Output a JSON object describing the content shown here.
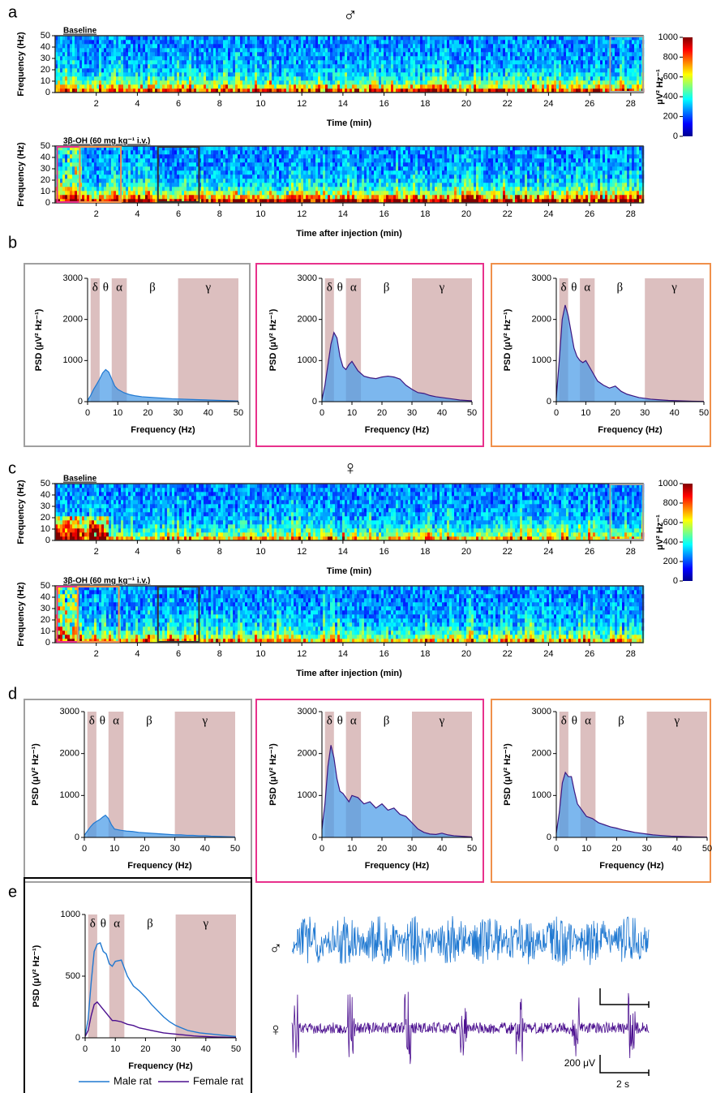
{
  "figure": {
    "panel_labels": [
      "a",
      "b",
      "c",
      "d",
      "e"
    ],
    "sex_symbols": [
      "♂",
      "♀"
    ]
  },
  "chart_data": [
    {
      "type": "spectrogram",
      "title": "Baseline",
      "xlabel": "Time (min)",
      "ylabel": "Frequency (Hz)",
      "xlim": [
        0,
        28.6
      ],
      "xticks": [
        2,
        4,
        6,
        8,
        10,
        12,
        14,
        16,
        18,
        20,
        22,
        24,
        26,
        28
      ],
      "ylim": [
        0,
        50
      ],
      "yticks": [
        0,
        10,
        20,
        30,
        40,
        50
      ],
      "boxes": [
        {
          "from": 27,
          "to": 28.6,
          "color": "#a0a0a0"
        }
      ],
      "colorbar": {
        "label": "μV² Hz⁻¹",
        "lim": [
          0,
          1000
        ],
        "ticks": [
          0,
          200,
          400,
          600,
          800,
          1000
        ]
      }
    },
    {
      "type": "spectrogram",
      "title": "3β-OH (60 mg kg⁻¹ i.v.)",
      "xlabel": "Time after injection (min)",
      "ylabel": "Frequency (Hz)",
      "xlim": [
        0,
        28.6
      ],
      "xticks": [
        2,
        4,
        6,
        8,
        10,
        12,
        14,
        16,
        18,
        20,
        22,
        24,
        26,
        28
      ],
      "ylim": [
        0,
        50
      ],
      "yticks": [
        0,
        10,
        20,
        30,
        40,
        50
      ],
      "boxes": [
        {
          "from": 0.1,
          "to": 1.2,
          "color": "#e8318c"
        },
        {
          "from": 1.2,
          "to": 3.2,
          "color": "#f0904a"
        },
        {
          "from": 5,
          "to": 7,
          "color": "#333333"
        }
      ]
    },
    {
      "type": "area",
      "xlabel": "Frequency (Hz)",
      "ylabel": "PSD (μV² Hz⁻¹)",
      "frame_color": "#a0a0a0",
      "color": "#4a9be8",
      "line_color": "#1f78d1",
      "band_color": "#dcbfbf",
      "bands": [
        {
          "label": "δ",
          "from": 1,
          "to": 4,
          "shaded": true
        },
        {
          "label": "θ",
          "from": 4,
          "to": 8,
          "shaded": false
        },
        {
          "label": "α",
          "from": 8,
          "to": 13,
          "shaded": true
        },
        {
          "label": "β",
          "from": 13,
          "to": 30,
          "shaded": false
        },
        {
          "label": "γ",
          "from": 30,
          "to": 50,
          "shaded": true
        }
      ],
      "xlim": [
        0,
        50
      ],
      "xticks": [
        0,
        10,
        20,
        30,
        40,
        50
      ],
      "ylim": [
        0,
        3000
      ],
      "yticks": [
        0,
        1000,
        2000,
        3000
      ],
      "x": [
        0,
        1,
        2,
        3,
        4,
        5,
        6,
        7,
        8,
        9,
        10,
        12,
        14,
        16,
        18,
        20,
        22,
        24,
        26,
        28,
        30,
        32,
        34,
        36,
        38,
        40,
        42,
        44,
        46,
        48,
        50
      ],
      "values": [
        30,
        150,
        300,
        420,
        550,
        700,
        780,
        720,
        550,
        380,
        300,
        220,
        170,
        140,
        120,
        110,
        100,
        90,
        80,
        70,
        65,
        60,
        55,
        50,
        45,
        40,
        35,
        30,
        25,
        20,
        15
      ]
    },
    {
      "type": "area",
      "xlabel": "Frequency (Hz)",
      "ylabel": "PSD (μV² Hz⁻¹)",
      "frame_color": "#e8318c",
      "color": "#4a9be8",
      "line_color": "#3d1680",
      "band_color": "#dcbfbf",
      "bands": [
        {
          "label": "δ",
          "from": 1,
          "to": 4,
          "shaded": true
        },
        {
          "label": "θ",
          "from": 4,
          "to": 8,
          "shaded": false
        },
        {
          "label": "α",
          "from": 8,
          "to": 13,
          "shaded": true
        },
        {
          "label": "β",
          "from": 13,
          "to": 30,
          "shaded": false
        },
        {
          "label": "γ",
          "from": 30,
          "to": 50,
          "shaded": true
        }
      ],
      "xlim": [
        0,
        50
      ],
      "xticks": [
        0,
        10,
        20,
        30,
        40,
        50
      ],
      "ylim": [
        0,
        3000
      ],
      "yticks": [
        0,
        1000,
        2000,
        3000
      ],
      "x": [
        0,
        1,
        2,
        3,
        4,
        5,
        6,
        7,
        8,
        9,
        10,
        12,
        14,
        16,
        18,
        20,
        22,
        24,
        26,
        28,
        30,
        32,
        34,
        36,
        38,
        40,
        42,
        44,
        46,
        48,
        50
      ],
      "values": [
        50,
        400,
        900,
        1400,
        1680,
        1550,
        1100,
        850,
        780,
        900,
        980,
        750,
        620,
        580,
        560,
        600,
        620,
        600,
        550,
        400,
        300,
        220,
        200,
        150,
        120,
        100,
        80,
        60,
        40,
        30,
        20
      ]
    },
    {
      "type": "area",
      "xlabel": "Frequency (Hz)",
      "ylabel": "PSD (μV² Hz⁻¹)",
      "frame_color": "#f0904a",
      "color": "#4a9be8",
      "line_color": "#3d1680",
      "band_color": "#dcbfbf",
      "bands": [
        {
          "label": "δ",
          "from": 1,
          "to": 4,
          "shaded": true
        },
        {
          "label": "θ",
          "from": 4,
          "to": 8,
          "shaded": false
        },
        {
          "label": "α",
          "from": 8,
          "to": 13,
          "shaded": true
        },
        {
          "label": "β",
          "from": 13,
          "to": 30,
          "shaded": false
        },
        {
          "label": "γ",
          "from": 30,
          "to": 50,
          "shaded": true
        }
      ],
      "xlim": [
        0,
        50
      ],
      "xticks": [
        0,
        10,
        20,
        30,
        40,
        50
      ],
      "ylim": [
        0,
        3000
      ],
      "yticks": [
        0,
        1000,
        2000,
        3000
      ],
      "x": [
        0,
        1,
        2,
        3,
        4,
        5,
        6,
        7,
        8,
        9,
        10,
        12,
        14,
        16,
        18,
        20,
        22,
        24,
        26,
        28,
        30,
        32,
        34,
        36,
        38,
        40,
        42,
        44,
        46,
        48,
        50
      ],
      "values": [
        100,
        1000,
        2000,
        2350,
        2100,
        1700,
        1300,
        1100,
        1000,
        950,
        1000,
        750,
        500,
        400,
        330,
        380,
        250,
        180,
        140,
        100,
        80,
        60,
        50,
        40,
        30,
        25,
        20,
        15,
        10,
        8,
        5
      ]
    },
    {
      "type": "spectrogram",
      "title": "Baseline",
      "xlabel": "Time (min)",
      "ylabel": "Frequency (Hz)",
      "xlim": [
        0,
        28.6
      ],
      "xticks": [
        2,
        4,
        6,
        8,
        10,
        12,
        14,
        16,
        18,
        20,
        22,
        24,
        26,
        28
      ],
      "ylim": [
        0,
        50
      ],
      "yticks": [
        0,
        10,
        20,
        30,
        40,
        50
      ],
      "boxes": [
        {
          "from": 27,
          "to": 28.6,
          "color": "#a0a0a0"
        }
      ],
      "colorbar": {
        "label": "μV² Hz⁻¹",
        "lim": [
          0,
          1000
        ],
        "ticks": [
          0,
          200,
          400,
          600,
          800,
          1000
        ]
      }
    },
    {
      "type": "spectrogram",
      "title": "3β-OH (60 mg kg⁻¹ i.v.)",
      "xlabel": "Time after injection (min)",
      "ylabel": "Frequency (Hz)",
      "xlim": [
        0,
        28.6
      ],
      "xticks": [
        2,
        4,
        6,
        8,
        10,
        12,
        14,
        16,
        18,
        20,
        22,
        24,
        26,
        28
      ],
      "ylim": [
        0,
        50
      ],
      "yticks": [
        0,
        10,
        20,
        30,
        40,
        50
      ],
      "boxes": [
        {
          "from": 0.1,
          "to": 1.1,
          "color": "#e8318c"
        },
        {
          "from": 1.1,
          "to": 3.1,
          "color": "#f0904a"
        },
        {
          "from": 5,
          "to": 7,
          "color": "#333333"
        }
      ]
    },
    {
      "type": "area",
      "xlabel": "Frequency (Hz)",
      "ylabel": "PSD (μV² Hz⁻¹)",
      "frame_color": "#a0a0a0",
      "color": "#4a9be8",
      "line_color": "#1f78d1",
      "band_color": "#dcbfbf",
      "bands": [
        {
          "label": "δ",
          "from": 1,
          "to": 4,
          "shaded": true
        },
        {
          "label": "θ",
          "from": 4,
          "to": 8,
          "shaded": false
        },
        {
          "label": "α",
          "from": 8,
          "to": 13,
          "shaded": true
        },
        {
          "label": "β",
          "from": 13,
          "to": 30,
          "shaded": false
        },
        {
          "label": "γ",
          "from": 30,
          "to": 50,
          "shaded": true
        }
      ],
      "xlim": [
        0,
        50
      ],
      "xticks": [
        0,
        10,
        20,
        30,
        40,
        50
      ],
      "ylim": [
        0,
        3000
      ],
      "yticks": [
        0,
        1000,
        2000,
        3000
      ],
      "x": [
        0,
        1,
        2,
        3,
        4,
        5,
        6,
        7,
        8,
        9,
        10,
        12,
        14,
        16,
        18,
        20,
        22,
        24,
        26,
        28,
        30,
        32,
        34,
        36,
        38,
        40,
        42,
        44,
        46,
        48,
        50
      ],
      "values": [
        50,
        150,
        250,
        330,
        380,
        420,
        480,
        530,
        450,
        300,
        200,
        170,
        150,
        140,
        120,
        110,
        100,
        90,
        80,
        70,
        60,
        60,
        50,
        50,
        40,
        40,
        30,
        25,
        20,
        15,
        10
      ]
    },
    {
      "type": "area",
      "xlabel": "Frequency (Hz)",
      "ylabel": "PSD (μV² Hz⁻¹)",
      "frame_color": "#e8318c",
      "color": "#4a9be8",
      "line_color": "#3d1680",
      "band_color": "#dcbfbf",
      "bands": [
        {
          "label": "δ",
          "from": 1,
          "to": 4,
          "shaded": true
        },
        {
          "label": "θ",
          "from": 4,
          "to": 8,
          "shaded": false
        },
        {
          "label": "α",
          "from": 8,
          "to": 13,
          "shaded": true
        },
        {
          "label": "β",
          "from": 13,
          "to": 30,
          "shaded": false
        },
        {
          "label": "γ",
          "from": 30,
          "to": 50,
          "shaded": true
        }
      ],
      "xlim": [
        0,
        50
      ],
      "xticks": [
        0,
        10,
        20,
        30,
        40,
        50
      ],
      "ylim": [
        0,
        3000
      ],
      "yticks": [
        0,
        1000,
        2000,
        3000
      ],
      "x": [
        0,
        1,
        2,
        3,
        4,
        5,
        6,
        7,
        8,
        9,
        10,
        12,
        14,
        16,
        18,
        20,
        22,
        24,
        26,
        28,
        30,
        32,
        34,
        36,
        38,
        40,
        42,
        44,
        46,
        48,
        50
      ],
      "values": [
        200,
        800,
        1700,
        2200,
        1900,
        1400,
        1100,
        1050,
        950,
        850,
        1000,
        950,
        800,
        850,
        700,
        800,
        650,
        700,
        550,
        500,
        350,
        200,
        120,
        80,
        70,
        100,
        60,
        40,
        30,
        20,
        10
      ]
    },
    {
      "type": "area",
      "xlabel": "Frequency (Hz)",
      "ylabel": "PSD (μV² Hz⁻¹)",
      "frame_color": "#f0904a",
      "color": "#4a9be8",
      "line_color": "#3d1680",
      "band_color": "#dcbfbf",
      "bands": [
        {
          "label": "δ",
          "from": 1,
          "to": 4,
          "shaded": true
        },
        {
          "label": "θ",
          "from": 4,
          "to": 8,
          "shaded": false
        },
        {
          "label": "α",
          "from": 8,
          "to": 13,
          "shaded": true
        },
        {
          "label": "β",
          "from": 13,
          "to": 30,
          "shaded": false
        },
        {
          "label": "γ",
          "from": 30,
          "to": 50,
          "shaded": true
        }
      ],
      "xlim": [
        0,
        50
      ],
      "xticks": [
        0,
        10,
        20,
        30,
        40,
        50
      ],
      "ylim": [
        0,
        3000
      ],
      "yticks": [
        0,
        1000,
        2000,
        3000
      ],
      "x": [
        0,
        1,
        2,
        3,
        4,
        5,
        6,
        7,
        8,
        9,
        10,
        12,
        14,
        16,
        18,
        20,
        22,
        24,
        26,
        28,
        30,
        32,
        34,
        36,
        38,
        40,
        42,
        44,
        46,
        48,
        50
      ],
      "values": [
        100,
        600,
        1300,
        1550,
        1450,
        1450,
        1100,
        800,
        700,
        600,
        500,
        450,
        350,
        300,
        250,
        220,
        180,
        150,
        120,
        100,
        80,
        60,
        50,
        40,
        30,
        25,
        20,
        15,
        10,
        8,
        5
      ]
    },
    {
      "type": "line",
      "xlabel": "Frequency (Hz)",
      "ylabel": "PSD (μV² Hz⁻¹)",
      "frame_color": "#000000",
      "band_color": "#dcbfbf",
      "legend": "bottom",
      "bands": [
        {
          "label": "δ",
          "from": 1,
          "to": 4,
          "shaded": true
        },
        {
          "label": "θ",
          "from": 4,
          "to": 8,
          "shaded": false
        },
        {
          "label": "α",
          "from": 8,
          "to": 13,
          "shaded": true
        },
        {
          "label": "β",
          "from": 13,
          "to": 30,
          "shaded": false
        },
        {
          "label": "γ",
          "from": 30,
          "to": 50,
          "shaded": true
        }
      ],
      "xlim": [
        0,
        50
      ],
      "xticks": [
        0,
        10,
        20,
        30,
        40,
        50
      ],
      "ylim": [
        0,
        1000
      ],
      "yticks": [
        0,
        500,
        1000
      ],
      "x": [
        0,
        1,
        2,
        3,
        4,
        5,
        6,
        7,
        8,
        9,
        10,
        12,
        14,
        16,
        18,
        20,
        22,
        24,
        26,
        28,
        30,
        32,
        34,
        36,
        38,
        40,
        42,
        44,
        46,
        48,
        50
      ],
      "series": [
        {
          "name": "Male rat",
          "color": "#1f78d1",
          "values": [
            20,
            150,
            450,
            700,
            760,
            770,
            700,
            680,
            600,
            580,
            620,
            630,
            500,
            420,
            380,
            330,
            270,
            220,
            170,
            130,
            100,
            80,
            60,
            50,
            40,
            35,
            30,
            25,
            20,
            15,
            10
          ]
        },
        {
          "name": "Female rat",
          "color": "#4b0f8f",
          "values": [
            10,
            60,
            180,
            270,
            290,
            260,
            230,
            200,
            170,
            140,
            140,
            130,
            110,
            100,
            80,
            70,
            60,
            50,
            40,
            35,
            30,
            25,
            20,
            15,
            12,
            10,
            8,
            6,
            5,
            4,
            3
          ]
        }
      ]
    },
    {
      "type": "traces",
      "series": [
        {
          "label": "♂",
          "color": "#1f78d1"
        },
        {
          "label": "♀",
          "color": "#4b0f8f"
        }
      ],
      "scale_bar": {
        "amplitude_label": "200 μV",
        "time_label": "2 s"
      }
    }
  ]
}
